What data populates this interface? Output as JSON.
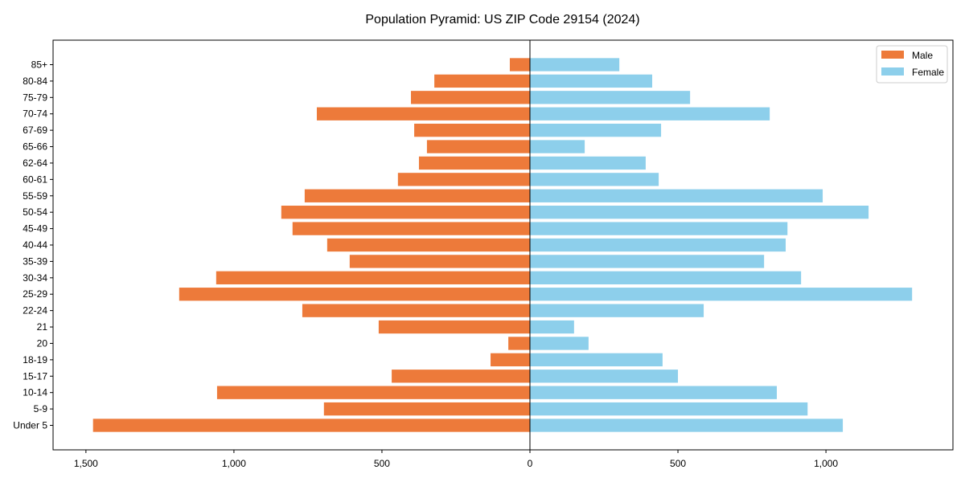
{
  "chart_data": {
    "type": "bar",
    "orientation": "horizontal-pyramid",
    "title": "Population Pyramid: US ZIP Code 29154 (2024)",
    "xlabel": "",
    "ylabel": "",
    "xlim": [
      -1611,
      1429
    ],
    "xticks": [
      -1500,
      -1000,
      -500,
      0,
      500,
      1000
    ],
    "xtick_labels": [
      "1,500",
      "1,000",
      "500",
      "0",
      "500",
      "1,000"
    ],
    "legend_position": "top-right",
    "categories": [
      "Under 5",
      "5-9",
      "10-14",
      "15-17",
      "18-19",
      "20",
      "21",
      "22-24",
      "25-29",
      "30-34",
      "35-39",
      "40-44",
      "45-49",
      "50-54",
      "55-59",
      "60-61",
      "62-64",
      "65-66",
      "67-69",
      "70-74",
      "75-79",
      "80-84",
      "85+"
    ],
    "series": [
      {
        "name": "Male",
        "color": "#ED7A3A",
        "values": [
          1476,
          696,
          1057,
          467,
          133,
          73,
          511,
          769,
          1185,
          1060,
          609,
          685,
          802,
          840,
          761,
          446,
          375,
          348,
          391,
          720,
          402,
          323,
          68
        ]
      },
      {
        "name": "Female",
        "color": "#8DCFEB",
        "values": [
          1057,
          938,
          834,
          500,
          448,
          198,
          149,
          587,
          1291,
          916,
          791,
          864,
          870,
          1144,
          989,
          435,
          391,
          185,
          443,
          810,
          541,
          413,
          302
        ]
      }
    ]
  }
}
